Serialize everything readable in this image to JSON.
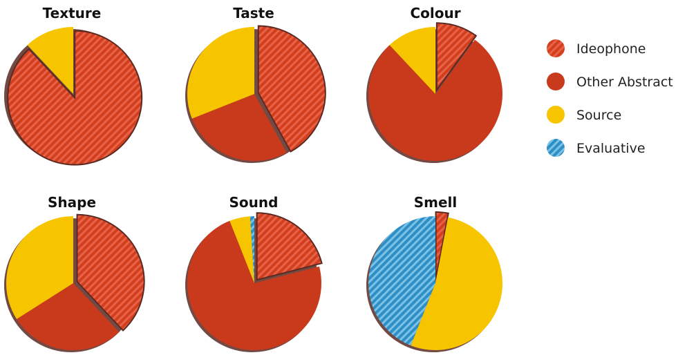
{
  "colors": {
    "Ideophone": "#d23f1c",
    "Other Abstract": "#c93a1d",
    "Source": "#f7c500",
    "Evaluative": "#2e8fc6",
    "hatch_red": "#e8624a",
    "hatch_blue": "#7cc2e6",
    "shadow": "#5a2a22"
  },
  "chart_data": [
    {
      "type": "pie",
      "title": "Texture",
      "slices": [
        {
          "label": "Ideophone",
          "value": 88
        },
        {
          "label": "Source",
          "value": 12
        }
      ]
    },
    {
      "type": "pie",
      "title": "Taste",
      "slices": [
        {
          "label": "Ideophone",
          "value": 42
        },
        {
          "label": "Other Abstract",
          "value": 27
        },
        {
          "label": "Source",
          "value": 31
        }
      ]
    },
    {
      "type": "pie",
      "title": "Colour",
      "slices": [
        {
          "label": "Ideophone",
          "value": 10
        },
        {
          "label": "Other Abstract",
          "value": 78
        },
        {
          "label": "Source",
          "value": 12
        }
      ]
    },
    {
      "type": "pie",
      "title": "Shape",
      "slices": [
        {
          "label": "Ideophone",
          "value": 38
        },
        {
          "label": "Other Abstract",
          "value": 28
        },
        {
          "label": "Source",
          "value": 34
        }
      ]
    },
    {
      "type": "pie",
      "title": "Sound",
      "slices": [
        {
          "label": "Ideophone",
          "value": 21
        },
        {
          "label": "Other Abstract",
          "value": 73
        },
        {
          "label": "Source",
          "value": 5
        },
        {
          "label": "Evaluative",
          "value": 1
        }
      ]
    },
    {
      "type": "pie",
      "title": "Smell",
      "slices": [
        {
          "label": "Ideophone",
          "value": 3
        },
        {
          "label": "Source",
          "value": 53
        },
        {
          "label": "Evaluative",
          "value": 44
        }
      ]
    }
  ],
  "legend": {
    "items": [
      {
        "label": "Ideophone",
        "hatched": true
      },
      {
        "label": "Other Abstract",
        "hatched": false
      },
      {
        "label": "Source",
        "hatched": false
      },
      {
        "label": "Evaluative",
        "hatched": true
      }
    ]
  }
}
